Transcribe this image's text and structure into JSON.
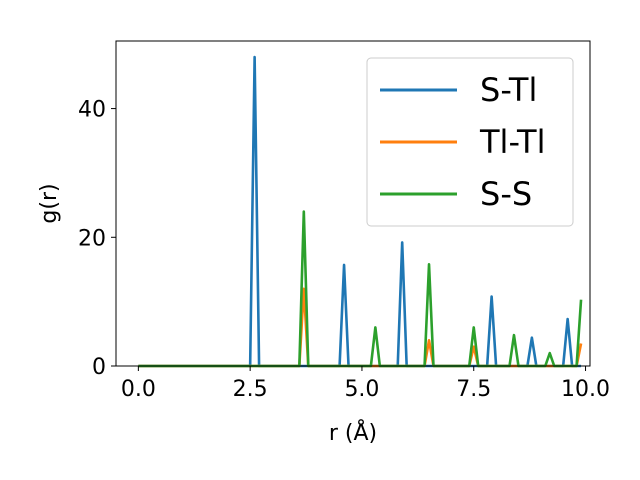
{
  "chart_data": {
    "type": "line",
    "title": "",
    "xlabel": "r (Å)",
    "ylabel": "g(r)",
    "xlim": [
      -0.5,
      10.1
    ],
    "ylim": [
      0,
      50.5
    ],
    "x_ticks": [
      0.0,
      2.5,
      5.0,
      7.5,
      10.0
    ],
    "x_tick_labels": [
      "0.0",
      "2.5",
      "5.0",
      "7.5",
      "10.0"
    ],
    "y_ticks": [
      0,
      20,
      40
    ],
    "y_tick_labels": [
      "0",
      "20",
      "40"
    ],
    "grid": false,
    "legend_position": "top-right",
    "series": [
      {
        "name": "S-Tl",
        "color": "#1f77b4",
        "x": [
          0,
          2.5,
          2.6,
          2.7,
          4.5,
          4.6,
          4.7,
          5.8,
          5.9,
          6.0,
          7.8,
          7.9,
          8.0,
          8.7,
          8.8,
          8.9,
          9.5,
          9.6,
          9.7,
          9.9
        ],
        "y": [
          0,
          0,
          48,
          0,
          0,
          15.7,
          0,
          0,
          19.2,
          0,
          0,
          10.8,
          0,
          0,
          4.4,
          0,
          0,
          7.3,
          0,
          0
        ]
      },
      {
        "name": "Tl-Tl",
        "color": "#ff7f0e",
        "x": [
          0,
          3.6,
          3.7,
          3.8,
          6.4,
          6.5,
          6.6,
          7.4,
          7.5,
          7.6,
          9.8,
          9.9
        ],
        "y": [
          0,
          0,
          12,
          0,
          0,
          4,
          0,
          0,
          3,
          0,
          0,
          3.5
        ]
      },
      {
        "name": "S-S",
        "color": "#2ca02c",
        "x": [
          0,
          3.6,
          3.7,
          3.8,
          5.2,
          5.3,
          5.4,
          6.4,
          6.5,
          6.6,
          7.4,
          7.5,
          7.6,
          8.3,
          8.4,
          8.5,
          9.1,
          9.2,
          9.3,
          9.8,
          9.9
        ],
        "y": [
          0,
          0,
          24,
          0,
          0,
          6,
          0,
          0,
          15.8,
          0,
          0,
          6,
          0,
          0,
          4.8,
          0,
          0,
          2,
          0,
          0,
          10.3
        ]
      }
    ]
  }
}
